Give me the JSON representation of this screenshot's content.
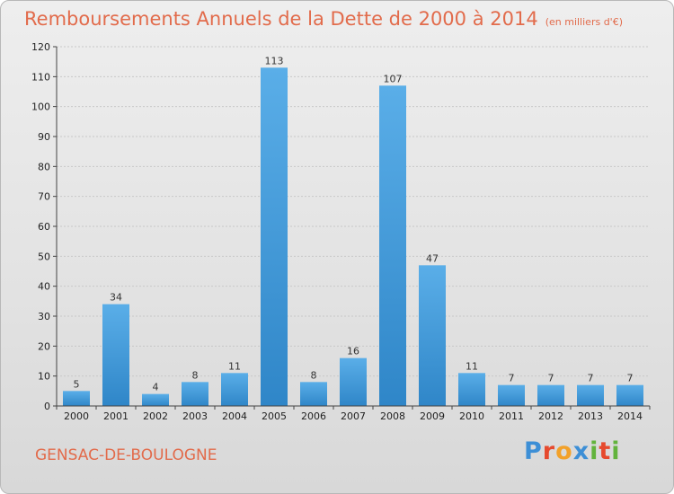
{
  "title": "Remboursements Annuels de la Dette de 2000 à 2014",
  "subtitle": "(en milliers d'€)",
  "commune": "GENSAC-DE-BOULOGNE",
  "logo": {
    "text": "Proxiti",
    "colors": [
      "#3d8fd6",
      "#e64a2e",
      "#f2a12a",
      "#3d8fd6",
      "#62b33c",
      "#e64a2e",
      "#62b33c"
    ]
  },
  "colors": {
    "bar_light": "#5aaee8",
    "bar_dark": "#2f86c8",
    "accent": "#e26b4b"
  },
  "chart_data": {
    "type": "bar",
    "title": "Remboursements Annuels de la Dette de 2000 à 2014",
    "categories": [
      "2000",
      "2001",
      "2002",
      "2003",
      "2004",
      "2005",
      "2006",
      "2007",
      "2008",
      "2009",
      "2010",
      "2011",
      "2012",
      "2013",
      "2014"
    ],
    "values": [
      5,
      34,
      4,
      8,
      11,
      113,
      8,
      16,
      107,
      47,
      11,
      7,
      7,
      7,
      7
    ],
    "ylim": [
      0,
      120
    ],
    "yticks": [
      0,
      10,
      20,
      30,
      40,
      50,
      60,
      70,
      80,
      90,
      100,
      110,
      120
    ],
    "grid": true
  }
}
